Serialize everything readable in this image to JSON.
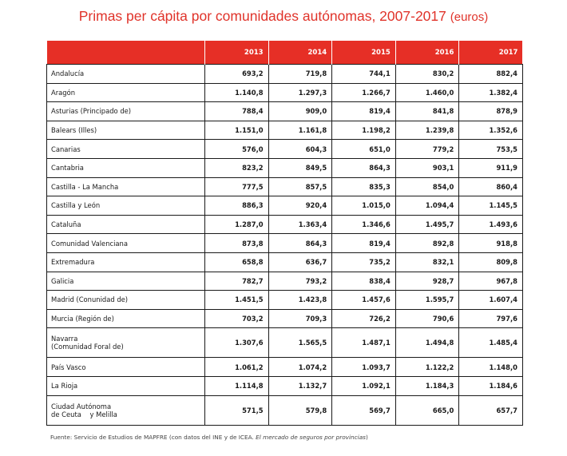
{
  "title": "Primas per cápita por comunidades autónomas, 2007-2017",
  "title_unit": "(euros)",
  "table": {
    "columns": [
      "2013",
      "2014",
      "2015",
      "2016",
      "2017"
    ],
    "rows": [
      {
        "name": "Andalucía",
        "values": [
          "693,2",
          "719,8",
          "744,1",
          "830,2",
          "882,4"
        ]
      },
      {
        "name": "Aragón",
        "values": [
          "1.140,8",
          "1.297,3",
          "1.266,7",
          "1.460,0",
          "1.382,4"
        ]
      },
      {
        "name": "Asturias (Principado de)",
        "values": [
          "788,4",
          "909,0",
          "819,4",
          "841,8",
          "878,9"
        ]
      },
      {
        "name": "Balears (Illes)",
        "values": [
          "1.151,0",
          "1.161,8",
          "1.198,2",
          "1.239,8",
          "1.352,6"
        ]
      },
      {
        "name": "Canarias",
        "values": [
          "576,0",
          "604,3",
          "651,0",
          "779,2",
          "753,5"
        ]
      },
      {
        "name": "Cantabria",
        "values": [
          "823,2",
          "849,5",
          "864,3",
          "903,1",
          "911,9"
        ]
      },
      {
        "name": "Castilla - La Mancha",
        "values": [
          "777,5",
          "857,5",
          "835,3",
          "854,0",
          "860,4"
        ]
      },
      {
        "name": "Castilla y León",
        "values": [
          "886,3",
          "920,4",
          "1.015,0",
          "1.094,4",
          "1.145,5"
        ]
      },
      {
        "name": "Cataluña",
        "values": [
          "1.287,0",
          "1.363,4",
          "1.346,6",
          "1.495,7",
          "1.493,6"
        ]
      },
      {
        "name": "Comunidad Valenciana",
        "values": [
          "873,8",
          "864,3",
          "819,4",
          "892,8",
          "918,8"
        ]
      },
      {
        "name": "Extremadura",
        "values": [
          "658,8",
          "636,7",
          "735,2",
          "832,1",
          "809,8"
        ]
      },
      {
        "name": "Galicia",
        "values": [
          "782,7",
          "793,2",
          "838,4",
          "928,7",
          "967,8"
        ]
      },
      {
        "name": "Madrid (Conunidad de)",
        "values": [
          "1.451,5",
          "1.423,8",
          "1.457,6",
          "1.595,7",
          "1.607,4"
        ]
      },
      {
        "name": "Murcia (Región de)",
        "values": [
          "703,2",
          "709,3",
          "726,2",
          "790,6",
          "797,6"
        ]
      },
      {
        "name": "Navarra",
        "name2": "(Comunidad Foral de)",
        "values": [
          "1.307,6",
          "1.565,5",
          "1.487,1",
          "1.494,8",
          "1.485,4"
        ]
      },
      {
        "name": "País Vasco",
        "values": [
          "1.061,2",
          "1.074,2",
          "1.093,7",
          "1.122,2",
          "1.148,0"
        ]
      },
      {
        "name": "La Rioja",
        "values": [
          "1.114,8",
          "1.132,7",
          "1.092,1",
          "1.184,3",
          "1.184,6"
        ]
      },
      {
        "name": "Ciudad Autónoma",
        "name2": "de Ceuta    y Melilla",
        "values": [
          "571,5",
          "579,8",
          "569,7",
          "665,0",
          "657,7"
        ]
      }
    ]
  },
  "source_prefix": "Fuente: Servicio de Estudios de MAPFRE (con datos del INE y de ICEA.",
  "source_italic": "El mercado de seguros por provincias",
  "source_suffix": ")"
}
